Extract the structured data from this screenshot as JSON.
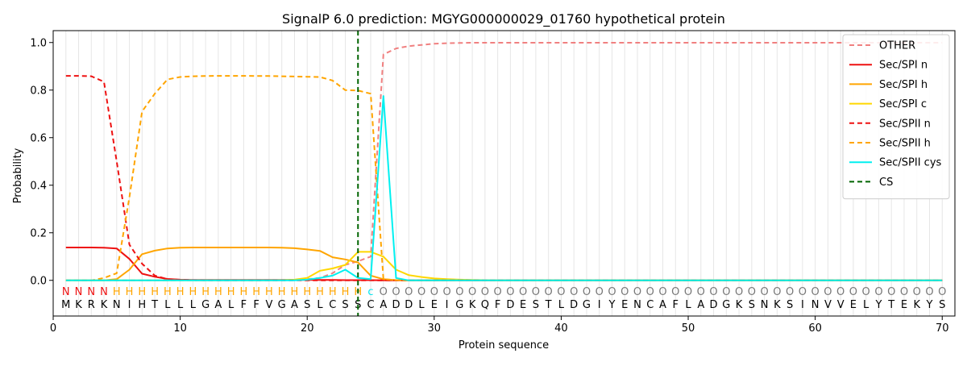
{
  "chart_data": {
    "type": "line",
    "title": "SignalP 6.0 prediction: MGYG000000029_01760 hypothetical protein",
    "xlabel": "Protein sequence",
    "ylabel": "Probability",
    "xlim": [
      0,
      71
    ],
    "ylim": [
      -0.15,
      1.05
    ],
    "x_ticks": [
      0,
      10,
      20,
      30,
      40,
      50,
      60,
      70
    ],
    "y_ticks": [
      0.0,
      0.2,
      0.4,
      0.6,
      0.8,
      1.0
    ],
    "x_tick_labels": [
      "0",
      "10",
      "20",
      "30",
      "40",
      "50",
      "60",
      "70"
    ],
    "y_tick_labels": [
      "0.0",
      "0.2",
      "0.4",
      "0.6",
      "0.8",
      "1.0"
    ],
    "grid": "vertical lines at each residue",
    "legend_position": "top-right",
    "sequence": [
      "M",
      "K",
      "R",
      "K",
      "N",
      "I",
      "H",
      "T",
      "L",
      "L",
      "L",
      "G",
      "A",
      "L",
      "F",
      "F",
      "V",
      "G",
      "A",
      "S",
      "L",
      "C",
      "S",
      "S",
      "C",
      "A",
      "D",
      "D",
      "L",
      "E",
      "I",
      "G",
      "K",
      "Q",
      "F",
      "D",
      "E",
      "S",
      "T",
      "L",
      "D",
      "G",
      "I",
      "Y",
      "E",
      "N",
      "C",
      "A",
      "F",
      "L",
      "A",
      "D",
      "G",
      "K",
      "S",
      "N",
      "K",
      "S",
      "I",
      "N",
      "V",
      "V",
      "E",
      "L",
      "Y",
      "T",
      "E",
      "K",
      "Y",
      "S"
    ],
    "region_labels": [
      "N",
      "N",
      "N",
      "N",
      "H",
      "H",
      "H",
      "H",
      "H",
      "H",
      "H",
      "H",
      "H",
      "H",
      "H",
      "H",
      "H",
      "H",
      "H",
      "H",
      "H",
      "H",
      "H",
      "H",
      "c",
      "O",
      "O",
      "O",
      "O",
      "O",
      "O",
      "O",
      "O",
      "O",
      "O",
      "O",
      "O",
      "O",
      "O",
      "O",
      "O",
      "O",
      "O",
      "O",
      "O",
      "O",
      "O",
      "O",
      "O",
      "O",
      "O",
      "O",
      "O",
      "O",
      "O",
      "O",
      "O",
      "O",
      "O",
      "O",
      "O",
      "O",
      "O",
      "O",
      "O",
      "O",
      "O",
      "O",
      "O",
      "O"
    ],
    "region_label_colors": {
      "N": "#ee1111",
      "H": "#ffa500",
      "c": "#00e5ee",
      "O": "#777777"
    },
    "cleavage_site": 24,
    "series": [
      {
        "name": "OTHER",
        "color": "#f08080",
        "dash": "dashed",
        "values": [
          0,
          0,
          0,
          0,
          0,
          0,
          0,
          0,
          0,
          0,
          0,
          0,
          0,
          0,
          0,
          0,
          0,
          0,
          0.002,
          0.005,
          0.01,
          0.03,
          0.065,
          0.08,
          0.1,
          0.95,
          0.975,
          0.985,
          0.99,
          0.995,
          0.997,
          0.998,
          0.999,
          0.999,
          0.999,
          0.999,
          0.999,
          0.999,
          0.999,
          0.999,
          0.999,
          0.999,
          0.999,
          0.999,
          0.999,
          0.999,
          0.999,
          0.999,
          0.999,
          0.999,
          0.999,
          0.999,
          0.999,
          0.999,
          0.999,
          0.999,
          0.999,
          0.999,
          0.999,
          0.999,
          0.999,
          0.999,
          0.999,
          0.999,
          0.999,
          0.999,
          0.999,
          0.999,
          0.999,
          0.999
        ]
      },
      {
        "name": "Sec/SPI n",
        "color": "#ee1111",
        "dash": "solid",
        "values": [
          0.138,
          0.138,
          0.138,
          0.137,
          0.134,
          0.09,
          0.028,
          0.015,
          0.006,
          0.003,
          0.002,
          0.002,
          0.002,
          0.002,
          0.002,
          0.002,
          0.002,
          0.002,
          0.002,
          0.002,
          0.002,
          0.002,
          0.001,
          0.001,
          0.001,
          0,
          0,
          0,
          0,
          0,
          0,
          0,
          0,
          0,
          0,
          0,
          0,
          0,
          0,
          0,
          0,
          0,
          0,
          0,
          0,
          0,
          0,
          0,
          0,
          0,
          0,
          0,
          0,
          0,
          0,
          0,
          0,
          0,
          0,
          0,
          0,
          0,
          0,
          0,
          0,
          0,
          0,
          0,
          0,
          0
        ]
      },
      {
        "name": "Sec/SPI h",
        "color": "#ffa500",
        "dash": "solid",
        "values": [
          0,
          0,
          0,
          0,
          0.005,
          0.045,
          0.11,
          0.125,
          0.134,
          0.137,
          0.138,
          0.138,
          0.138,
          0.138,
          0.138,
          0.138,
          0.138,
          0.137,
          0.135,
          0.13,
          0.124,
          0.097,
          0.088,
          0.075,
          0.02,
          0.005,
          0.001,
          0,
          0,
          0,
          0,
          0,
          0,
          0,
          0,
          0,
          0,
          0,
          0,
          0,
          0,
          0,
          0,
          0,
          0,
          0,
          0,
          0,
          0,
          0,
          0,
          0,
          0,
          0,
          0,
          0,
          0,
          0,
          0,
          0,
          0,
          0,
          0,
          0,
          0,
          0,
          0,
          0,
          0,
          0
        ]
      },
      {
        "name": "Sec/SPI c",
        "color": "#ffd700",
        "dash": "solid",
        "values": [
          0,
          0,
          0,
          0,
          0,
          0,
          0,
          0,
          0,
          0,
          0,
          0,
          0,
          0,
          0,
          0,
          0,
          0.001,
          0.003,
          0.01,
          0.04,
          0.05,
          0.065,
          0.12,
          0.12,
          0.1,
          0.045,
          0.022,
          0.014,
          0.008,
          0.005,
          0.003,
          0.002,
          0.001,
          0,
          0,
          0,
          0,
          0,
          0,
          0,
          0,
          0,
          0,
          0,
          0,
          0,
          0,
          0,
          0,
          0,
          0,
          0,
          0,
          0,
          0,
          0,
          0,
          0,
          0,
          0,
          0,
          0,
          0,
          0,
          0,
          0,
          0,
          0,
          0
        ]
      },
      {
        "name": "Sec/SPII n",
        "color": "#ee1111",
        "dash": "dashed",
        "values": [
          0.86,
          0.86,
          0.858,
          0.835,
          0.5,
          0.15,
          0.07,
          0.02,
          0.005,
          0.002,
          0.001,
          0,
          0,
          0,
          0,
          0,
          0,
          0,
          0,
          0,
          0,
          0,
          0,
          0,
          0,
          0,
          0,
          0,
          0,
          0,
          0,
          0,
          0,
          0,
          0,
          0,
          0,
          0,
          0,
          0,
          0,
          0,
          0,
          0,
          0,
          0,
          0,
          0,
          0,
          0,
          0,
          0,
          0,
          0,
          0,
          0,
          0,
          0,
          0,
          0,
          0,
          0,
          0,
          0,
          0,
          0,
          0,
          0,
          0,
          0
        ]
      },
      {
        "name": "Sec/SPII h",
        "color": "#ffa500",
        "dash": "dashed",
        "values": [
          0,
          0,
          0,
          0.01,
          0.03,
          0.35,
          0.71,
          0.785,
          0.845,
          0.855,
          0.858,
          0.859,
          0.86,
          0.86,
          0.86,
          0.859,
          0.859,
          0.858,
          0.857,
          0.856,
          0.855,
          0.84,
          0.8,
          0.798,
          0.785,
          0.005,
          0.001,
          0,
          0,
          0,
          0,
          0,
          0,
          0,
          0,
          0,
          0,
          0,
          0,
          0,
          0,
          0,
          0,
          0,
          0,
          0,
          0,
          0,
          0,
          0,
          0,
          0,
          0,
          0,
          0,
          0,
          0,
          0,
          0,
          0,
          0,
          0,
          0,
          0,
          0,
          0,
          0,
          0,
          0,
          0
        ]
      },
      {
        "name": "Sec/SPII cys",
        "color": "#00f0f0",
        "dash": "solid",
        "values": [
          0,
          0,
          0,
          0,
          0,
          0,
          0,
          0,
          0,
          0,
          0,
          0,
          0,
          0,
          0,
          0,
          0,
          0,
          0,
          0.003,
          0.01,
          0.02,
          0.045,
          0.01,
          0.005,
          0.775,
          0.01,
          0,
          0,
          0,
          0,
          0,
          0,
          0,
          0,
          0,
          0,
          0,
          0,
          0,
          0,
          0,
          0,
          0,
          0,
          0,
          0,
          0,
          0,
          0,
          0,
          0,
          0,
          0,
          0,
          0,
          0,
          0,
          0,
          0,
          0,
          0,
          0,
          0,
          0,
          0,
          0,
          0,
          0,
          0
        ]
      },
      {
        "name": "CS",
        "color": "#006400",
        "dash": "dashed",
        "vertical_at": 24
      }
    ]
  }
}
